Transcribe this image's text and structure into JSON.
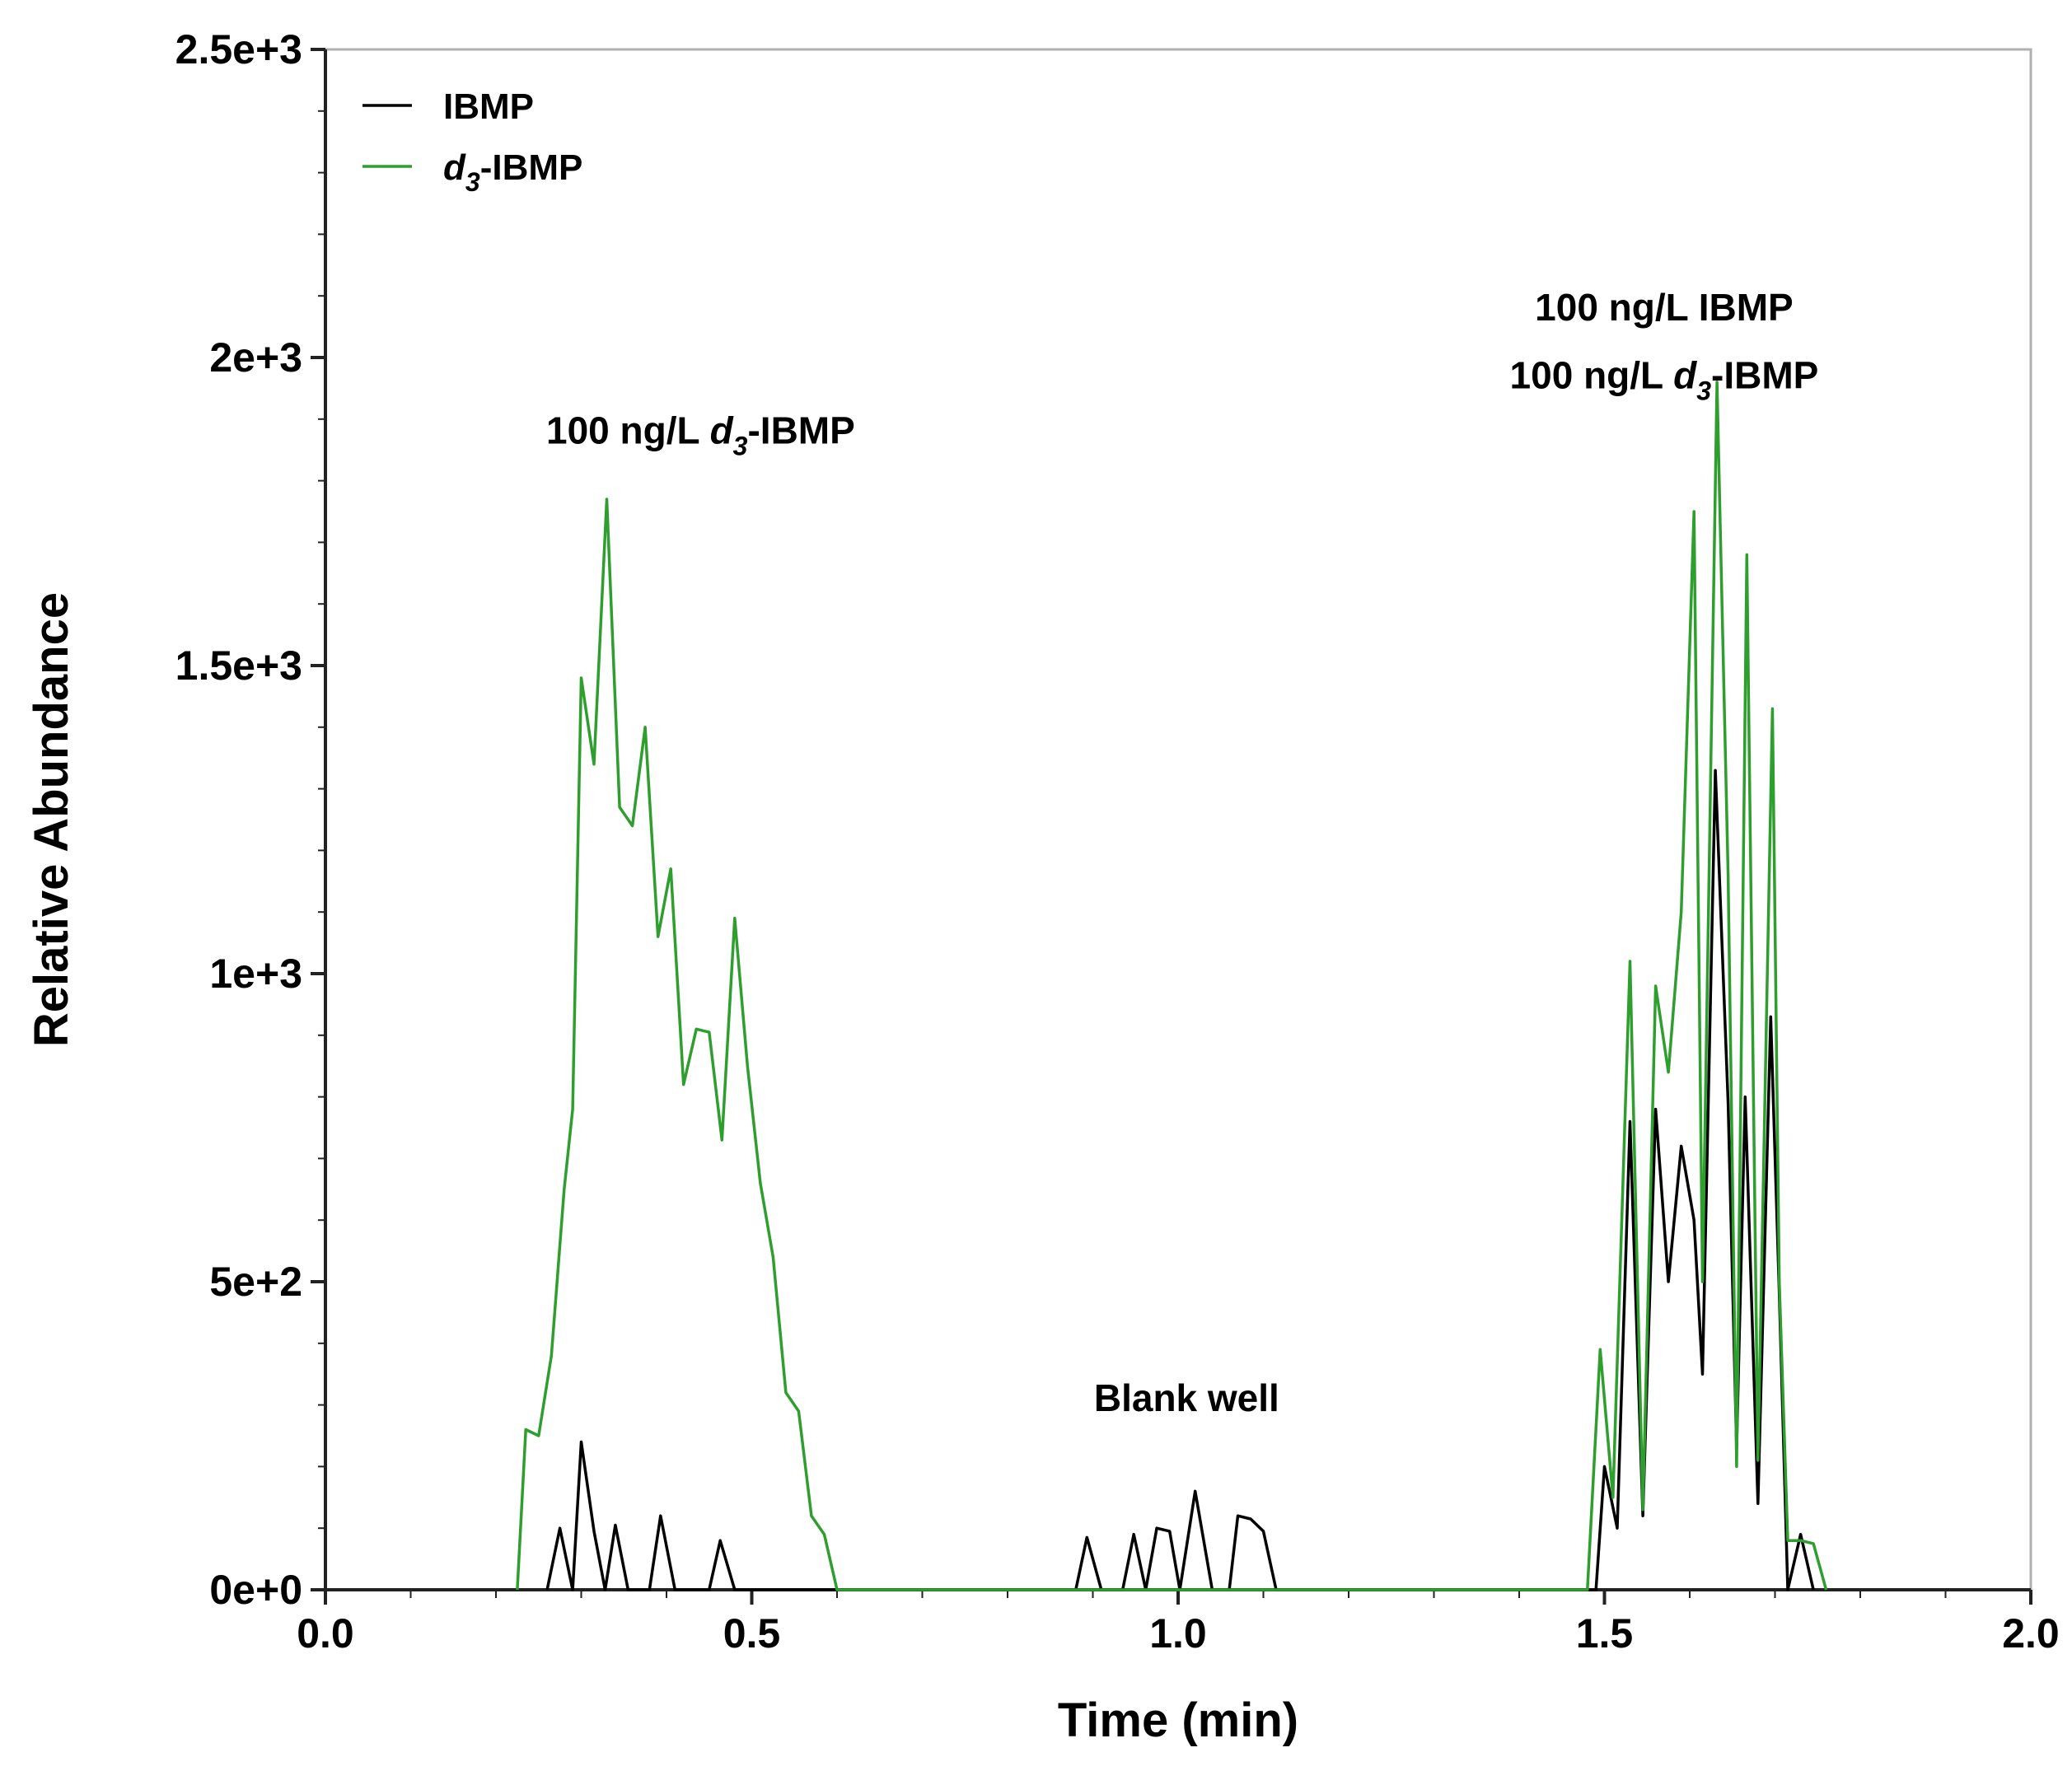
{
  "chart_data": {
    "type": "line",
    "xlabel": "Time (min)",
    "ylabel": "Relative Abundance",
    "xlim": [
      0,
      2
    ],
    "ylim": [
      0,
      2500
    ],
    "x_ticks": [
      "0.0",
      "0.5",
      "1.0",
      "1.5",
      "2.0"
    ],
    "y_ticks": [
      "0e+0",
      "5e+2",
      "1e+3",
      "1.5e+3",
      "2e+3",
      "2.5e+3"
    ],
    "grid": false,
    "legend_position": "top-left",
    "legend": [
      {
        "label": "IBMP",
        "italic_prefix": "",
        "subscript": ""
      },
      {
        "label": "-IBMP",
        "italic_prefix": "d",
        "subscript": "3"
      }
    ],
    "annotations": [
      {
        "id": "peak1",
        "pre": "100 ng/L ",
        "italic": "d",
        "sub": "3",
        "post": "-IBMP",
        "x": 0.44,
        "y": 1860
      },
      {
        "id": "blank",
        "pre": "Blank well",
        "italic": "",
        "sub": "",
        "post": "",
        "x": 1.01,
        "y": 290
      },
      {
        "id": "peak3a",
        "pre": "100 ng/L IBMP",
        "italic": "",
        "sub": "",
        "post": "",
        "x": 1.57,
        "y": 2060
      },
      {
        "id": "peak3b",
        "pre": "100 ng/L ",
        "italic": "d",
        "sub": "3",
        "post": "-IBMP",
        "x": 1.57,
        "y": 1950
      }
    ],
    "series": [
      {
        "name": "IBMP",
        "color": "#000000",
        "points": [
          [
            0.26,
            0
          ],
          [
            0.275,
            100
          ],
          [
            0.29,
            0
          ],
          [
            0.3,
            240
          ],
          [
            0.315,
            95
          ],
          [
            0.328,
            0
          ],
          [
            0.34,
            105
          ],
          [
            0.355,
            0
          ],
          [
            0.38,
            0
          ],
          [
            0.393,
            120
          ],
          [
            0.41,
            0
          ],
          [
            0.45,
            0
          ],
          [
            0.463,
            80
          ],
          [
            0.48,
            0
          ],
          [
            0.88,
            0
          ],
          [
            0.893,
            85
          ],
          [
            0.91,
            0
          ],
          [
            0.935,
            0
          ],
          [
            0.948,
            90
          ],
          [
            0.962,
            0
          ],
          [
            0.975,
            100
          ],
          [
            0.99,
            95
          ],
          [
            1.002,
            0
          ],
          [
            1.02,
            160
          ],
          [
            1.04,
            0
          ],
          [
            1.06,
            0
          ],
          [
            1.07,
            120
          ],
          [
            1.085,
            115
          ],
          [
            1.1,
            95
          ],
          [
            1.115,
            0
          ],
          [
            1.49,
            0
          ],
          [
            1.5,
            200
          ],
          [
            1.515,
            100
          ],
          [
            1.53,
            760
          ],
          [
            1.545,
            120
          ],
          [
            1.56,
            780
          ],
          [
            1.575,
            500
          ],
          [
            1.59,
            720
          ],
          [
            1.605,
            600
          ],
          [
            1.615,
            350
          ],
          [
            1.63,
            1330
          ],
          [
            1.645,
            790
          ],
          [
            1.655,
            230
          ],
          [
            1.665,
            800
          ],
          [
            1.68,
            140
          ],
          [
            1.695,
            930
          ],
          [
            1.705,
            480
          ],
          [
            1.715,
            0
          ],
          [
            1.73,
            90
          ],
          [
            1.745,
            0
          ]
        ]
      },
      {
        "name": "-IBMP",
        "color": "#2e9e2e",
        "points": [
          [
            0.225,
            0
          ],
          [
            0.235,
            260
          ],
          [
            0.25,
            250
          ],
          [
            0.265,
            380
          ],
          [
            0.28,
            650
          ],
          [
            0.29,
            780
          ],
          [
            0.3,
            1480
          ],
          [
            0.315,
            1340
          ],
          [
            0.33,
            1770
          ],
          [
            0.345,
            1270
          ],
          [
            0.36,
            1240
          ],
          [
            0.375,
            1400
          ],
          [
            0.39,
            1060
          ],
          [
            0.405,
            1170
          ],
          [
            0.42,
            820
          ],
          [
            0.435,
            910
          ],
          [
            0.45,
            905
          ],
          [
            0.465,
            730
          ],
          [
            0.48,
            1090
          ],
          [
            0.495,
            850
          ],
          [
            0.51,
            660
          ],
          [
            0.525,
            540
          ],
          [
            0.54,
            320
          ],
          [
            0.555,
            290
          ],
          [
            0.57,
            120
          ],
          [
            0.585,
            90
          ],
          [
            0.6,
            0
          ],
          [
            1.48,
            0
          ],
          [
            1.495,
            390
          ],
          [
            1.51,
            150
          ],
          [
            1.53,
            1020
          ],
          [
            1.545,
            130
          ],
          [
            1.56,
            980
          ],
          [
            1.575,
            840
          ],
          [
            1.59,
            1100
          ],
          [
            1.605,
            1750
          ],
          [
            1.615,
            500
          ],
          [
            1.632,
            1960
          ],
          [
            1.645,
            1160
          ],
          [
            1.655,
            200
          ],
          [
            1.667,
            1680
          ],
          [
            1.68,
            210
          ],
          [
            1.697,
            1430
          ],
          [
            1.705,
            500
          ],
          [
            1.715,
            80
          ],
          [
            1.73,
            80
          ],
          [
            1.745,
            75
          ],
          [
            1.76,
            0
          ]
        ]
      }
    ]
  }
}
